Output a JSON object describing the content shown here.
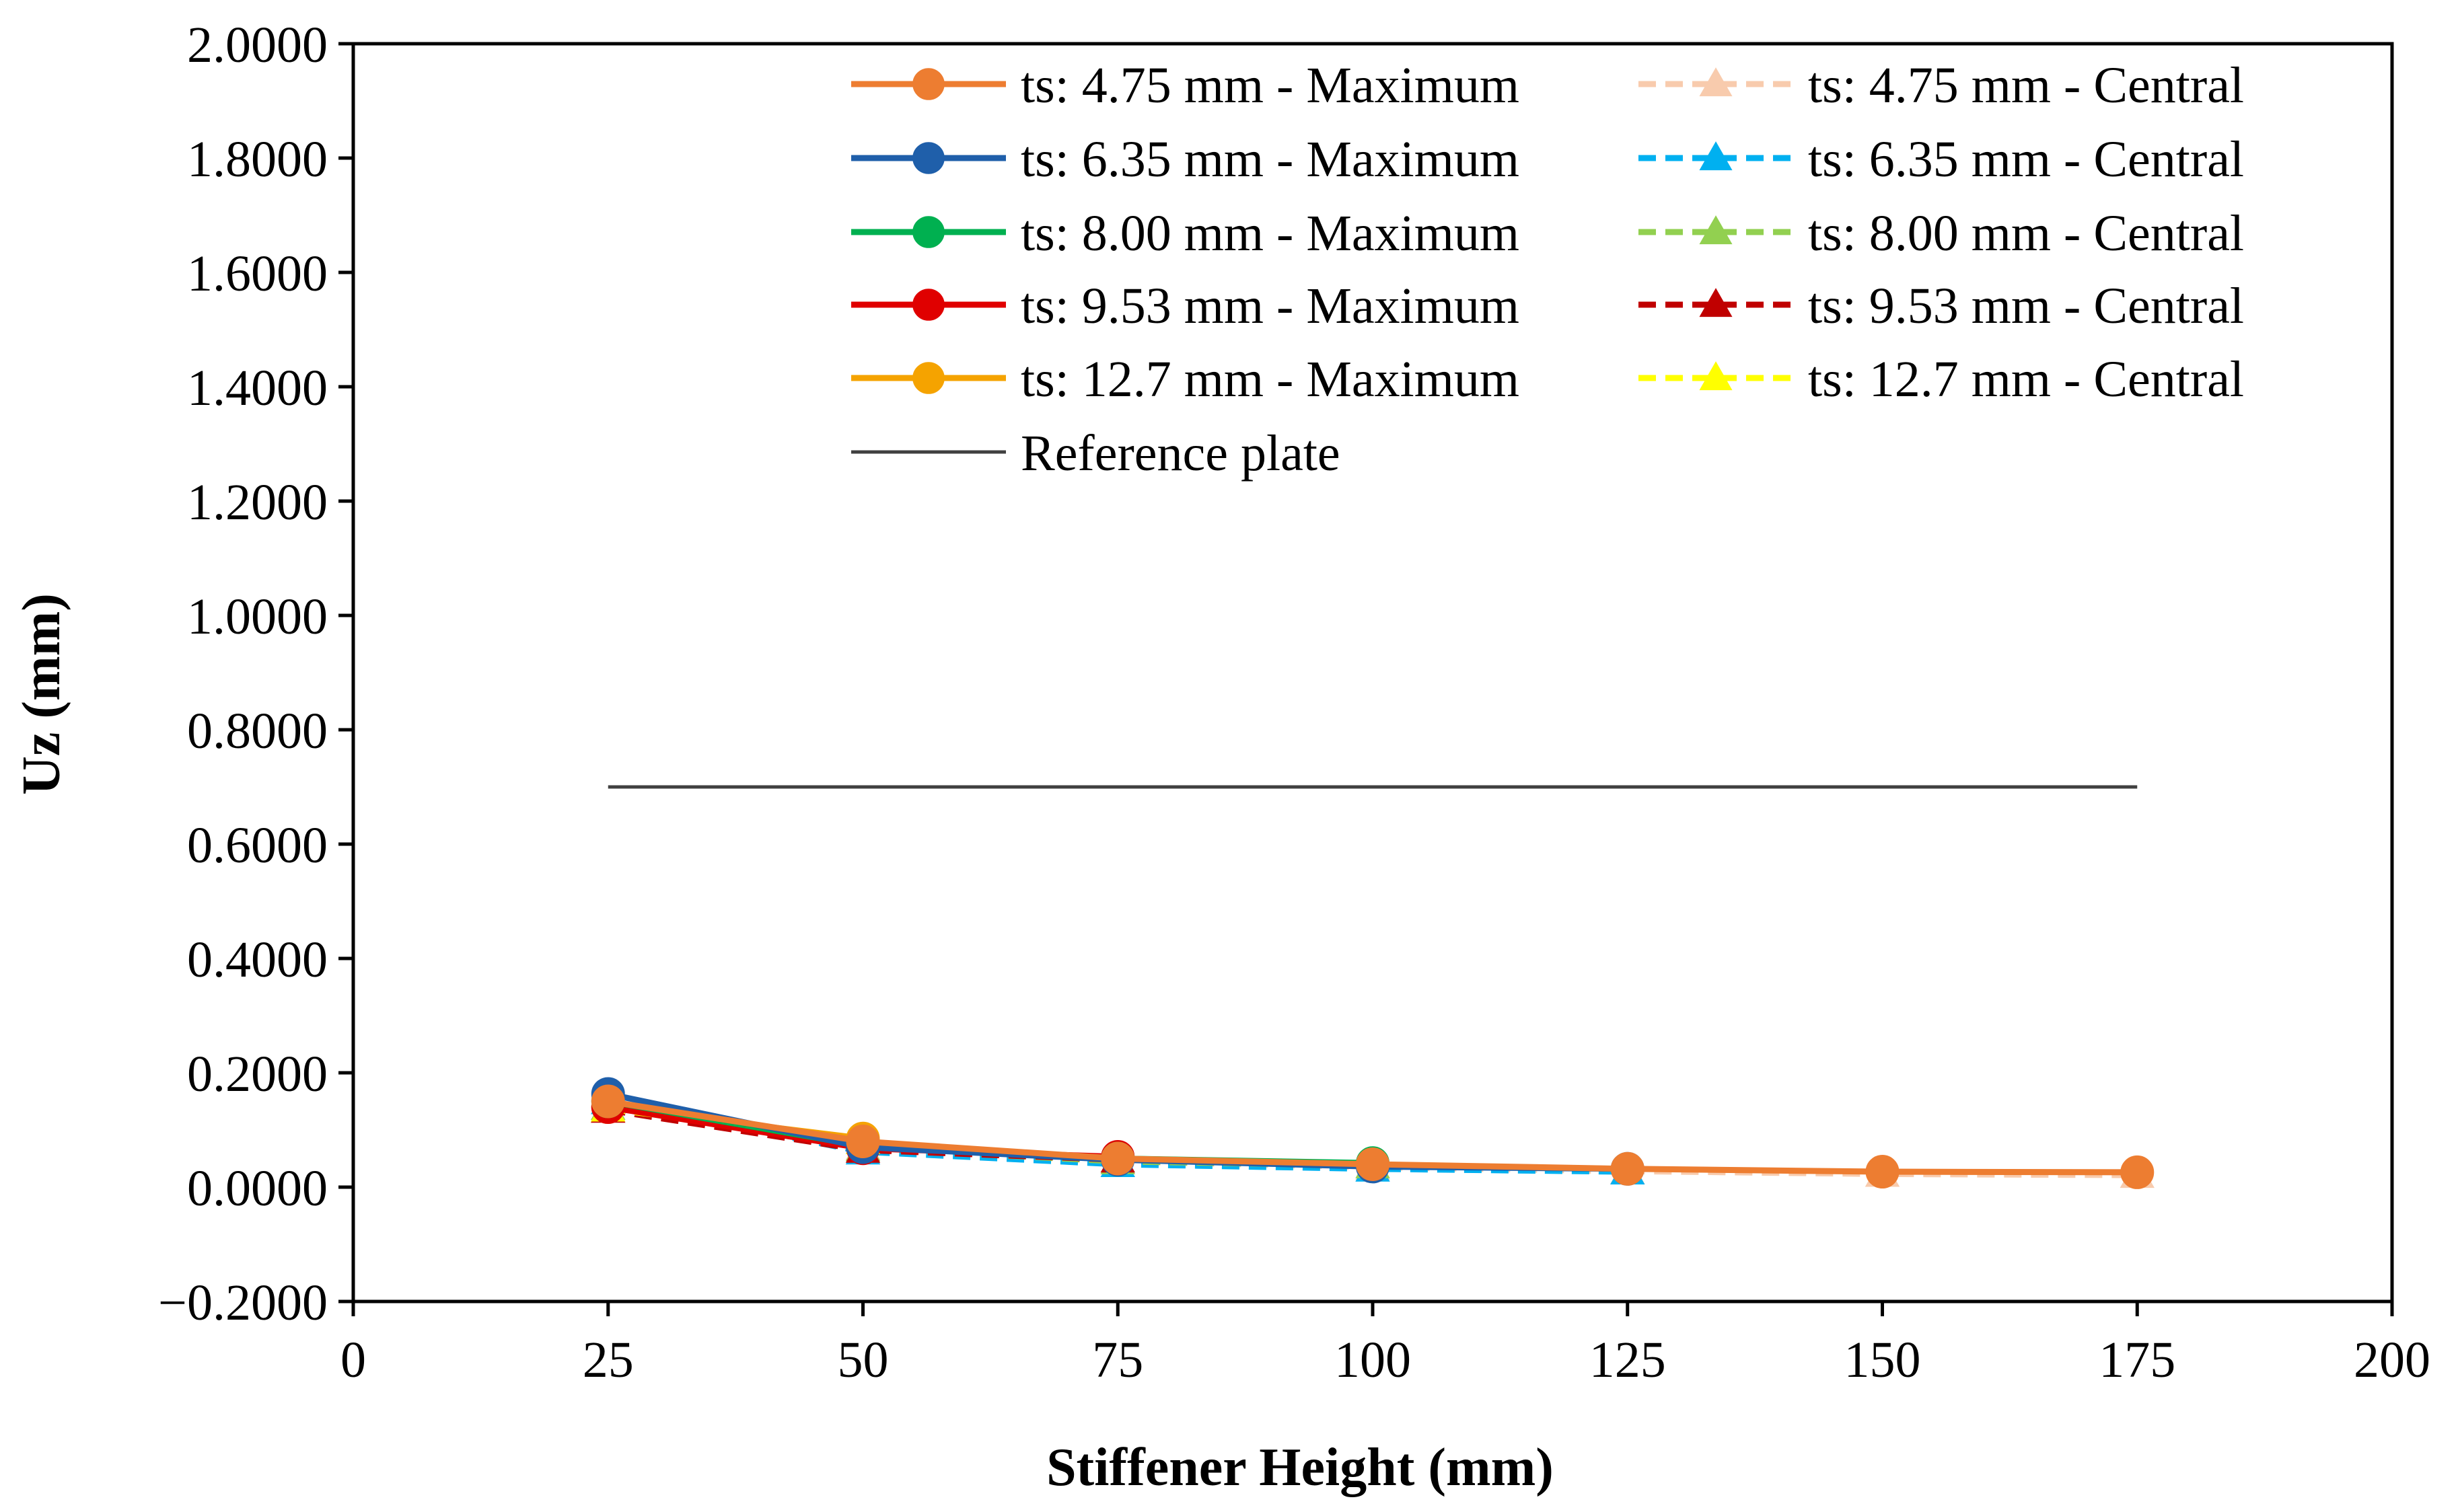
{
  "chart_data": {
    "type": "line",
    "title": "",
    "xlabel": "Stiffener Height (mm)",
    "ylabel": "Uz (mm)",
    "xlim": [
      0,
      200
    ],
    "ylim": [
      -0.2,
      2.0
    ],
    "x_ticks": [
      0,
      25,
      50,
      75,
      100,
      125,
      150,
      175,
      200
    ],
    "x_tick_labels": [
      "0",
      "25",
      "50",
      "75",
      "100",
      "125",
      "150",
      "175",
      "200"
    ],
    "y_ticks": [
      -0.2,
      0.0,
      0.2,
      0.4,
      0.6,
      0.8,
      1.0,
      1.2,
      1.4,
      1.6,
      1.8,
      2.0
    ],
    "y_tick_labels": [
      "−0.2000",
      "0.0000",
      "0.2000",
      "0.4000",
      "0.6000",
      "0.8000",
      "1.0000",
      "1.2000",
      "1.4000",
      "1.6000",
      "1.8000",
      "2.0000"
    ],
    "grid": false,
    "legend_position": "top-right",
    "series": [
      {
        "name": "ts: 4.75 mm - Maximum",
        "color": "#ED7D31",
        "dash": "solid",
        "marker": "circle",
        "x": [
          25,
          50,
          75,
          100,
          125,
          150,
          175
        ],
        "y": [
          0.15,
          0.08,
          0.05,
          0.04,
          0.032,
          0.027,
          0.026
        ]
      },
      {
        "name": "ts: 4.75 mm - Central",
        "color": "#F8CBAD",
        "dash": "dashed",
        "marker": "triangle",
        "x": [
          25,
          50,
          75,
          100,
          125,
          150,
          175
        ],
        "y": [
          0.14,
          0.07,
          0.045,
          0.035,
          0.028,
          0.023,
          0.021
        ]
      },
      {
        "name": "ts: 6.35 mm - Maximum",
        "color": "#1F5FAA",
        "dash": "solid",
        "marker": "circle",
        "x": [
          25,
          50,
          75,
          100,
          125
        ],
        "y": [
          0.163,
          0.07,
          0.048,
          0.036,
          0.032
        ]
      },
      {
        "name": "ts: 6.35 mm - Central",
        "color": "#00B0F0",
        "dash": "dashed",
        "marker": "triangle",
        "x": [
          25,
          50,
          75,
          100,
          125
        ],
        "y": [
          0.15,
          0.062,
          0.04,
          0.032,
          0.027
        ]
      },
      {
        "name": "ts: 8.00 mm - Maximum",
        "color": "#00B050",
        "dash": "solid",
        "marker": "circle",
        "x": [
          25,
          50,
          75,
          100
        ],
        "y": [
          0.15,
          0.072,
          0.05,
          0.042
        ]
      },
      {
        "name": "ts: 8.00 mm - Central",
        "color": "#92D050",
        "dash": "dashed",
        "marker": "triangle",
        "x": [
          25,
          50,
          75,
          100
        ],
        "y": [
          0.14,
          0.068,
          0.045,
          0.038
        ]
      },
      {
        "name": "ts: 9.53 mm - Maximum",
        "color": "#E00000",
        "dash": "solid",
        "marker": "circle",
        "x": [
          25,
          50,
          75
        ],
        "y": [
          0.14,
          0.068,
          0.053
        ]
      },
      {
        "name": "ts: 9.53 mm - Central",
        "color": "#C00000",
        "dash": "dashed",
        "marker": "triangle",
        "x": [
          25,
          50,
          75
        ],
        "y": [
          0.135,
          0.065,
          0.048
        ]
      },
      {
        "name": "ts: 12.7 mm - Maximum",
        "color": "#F5A300",
        "dash": "solid",
        "marker": "circle",
        "x": [
          25,
          50
        ],
        "y": [
          0.14,
          0.085
        ]
      },
      {
        "name": "ts: 12.7 mm - Central",
        "color": "#FFFF00",
        "dash": "dashed",
        "marker": "triangle",
        "x": [
          25,
          50
        ],
        "y": [
          0.137,
          0.08
        ]
      },
      {
        "name": "Reference plate",
        "color": "#404040",
        "dash": "solid",
        "marker": "none",
        "x": [
          25,
          175
        ],
        "y": [
          0.7,
          0.7
        ]
      }
    ],
    "legend_order": [
      0,
      1,
      2,
      3,
      4,
      5,
      6,
      7,
      8,
      9,
      10
    ]
  }
}
